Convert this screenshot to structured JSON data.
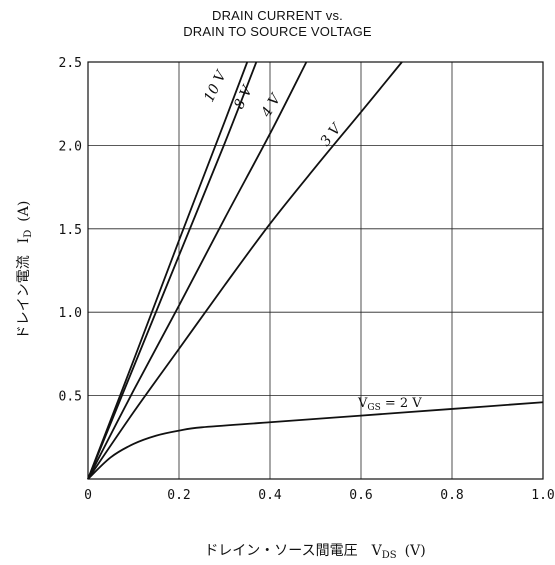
{
  "chart_data": {
    "type": "line",
    "title_line1": "DRAIN CURRENT vs.",
    "title_line2": "DRAIN TO SOURCE VOLTAGE",
    "xlabel": "ドレイン・ソース間電圧　V_DS（V）",
    "xlabel_main": "ドレイン・ソース間電圧",
    "xlabel_sym": "V",
    "xlabel_sub": "DS",
    "xlabel_unit": "(V)",
    "ylabel": "ドレイン電流　I_D（A）",
    "ylabel_main": "ドレイン電流",
    "ylabel_sym": "I",
    "ylabel_sub": "D",
    "ylabel_unit": "(A)",
    "xlim": [
      0,
      1.0
    ],
    "ylim": [
      0,
      2.5
    ],
    "grid": true,
    "x_ticks": [
      "0",
      "0.2",
      "0.4",
      "0.6",
      "0.8",
      "1.0"
    ],
    "y_ticks": [
      "0.5",
      "1.0",
      "1.5",
      "2.0",
      "2.5"
    ],
    "series": [
      {
        "name": "10 V",
        "x": [
          0,
          0.1,
          0.2,
          0.3,
          0.35
        ],
        "y": [
          0,
          0.71,
          1.43,
          2.14,
          2.5
        ]
      },
      {
        "name": "8 V",
        "x": [
          0,
          0.1,
          0.2,
          0.3,
          0.37
        ],
        "y": [
          0,
          0.67,
          1.34,
          2.01,
          2.5
        ]
      },
      {
        "name": "4 V",
        "x": [
          0,
          0.1,
          0.2,
          0.3,
          0.4,
          0.48
        ],
        "y": [
          0,
          0.53,
          1.04,
          1.56,
          2.07,
          2.5
        ]
      },
      {
        "name": "3 V",
        "x": [
          0,
          0.1,
          0.2,
          0.3,
          0.4,
          0.5,
          0.6,
          0.69
        ],
        "y": [
          0,
          0.4,
          0.78,
          1.16,
          1.53,
          1.87,
          2.2,
          2.5
        ]
      },
      {
        "name_main": "V",
        "name_sub": "GS",
        "name_rest": " = 2 V",
        "x": [
          0,
          0.05,
          0.1,
          0.15,
          0.2,
          0.25,
          0.4,
          0.6,
          0.8,
          1.0
        ],
        "y": [
          0,
          0.13,
          0.21,
          0.26,
          0.29,
          0.31,
          0.34,
          0.38,
          0.42,
          0.46
        ]
      }
    ]
  }
}
